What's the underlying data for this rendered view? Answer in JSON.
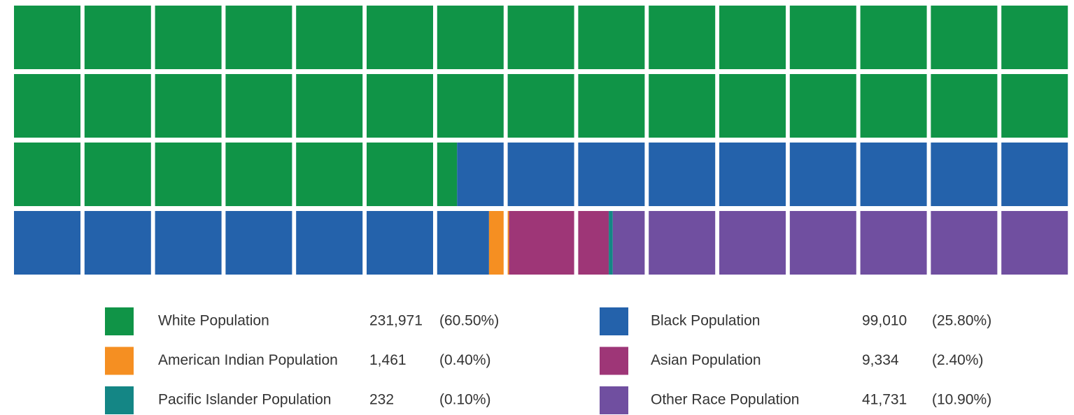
{
  "chart_data": {
    "type": "waffle",
    "categories": [
      "White Population",
      "Black Population",
      "American Indian Population",
      "Asian Population",
      "Pacific Islander Population",
      "Other Race Population"
    ],
    "values": [
      231971,
      99010,
      1461,
      9334,
      232,
      41731
    ],
    "value_labels": [
      "231,971",
      "99,010",
      "1,461",
      "9,334",
      "232",
      "41,731"
    ],
    "percents": [
      60.5,
      25.8,
      0.4,
      2.4,
      0.1,
      10.9
    ],
    "percent_labels": [
      "(60.50%)",
      "(25.80%)",
      "(0.40%)",
      "(2.40%)",
      "(0.10%)",
      "(10.90%)"
    ],
    "colors": [
      "#109447",
      "#2462ab",
      "#f58f22",
      "#9e3677",
      "#148685",
      "#704fa0"
    ]
  }
}
